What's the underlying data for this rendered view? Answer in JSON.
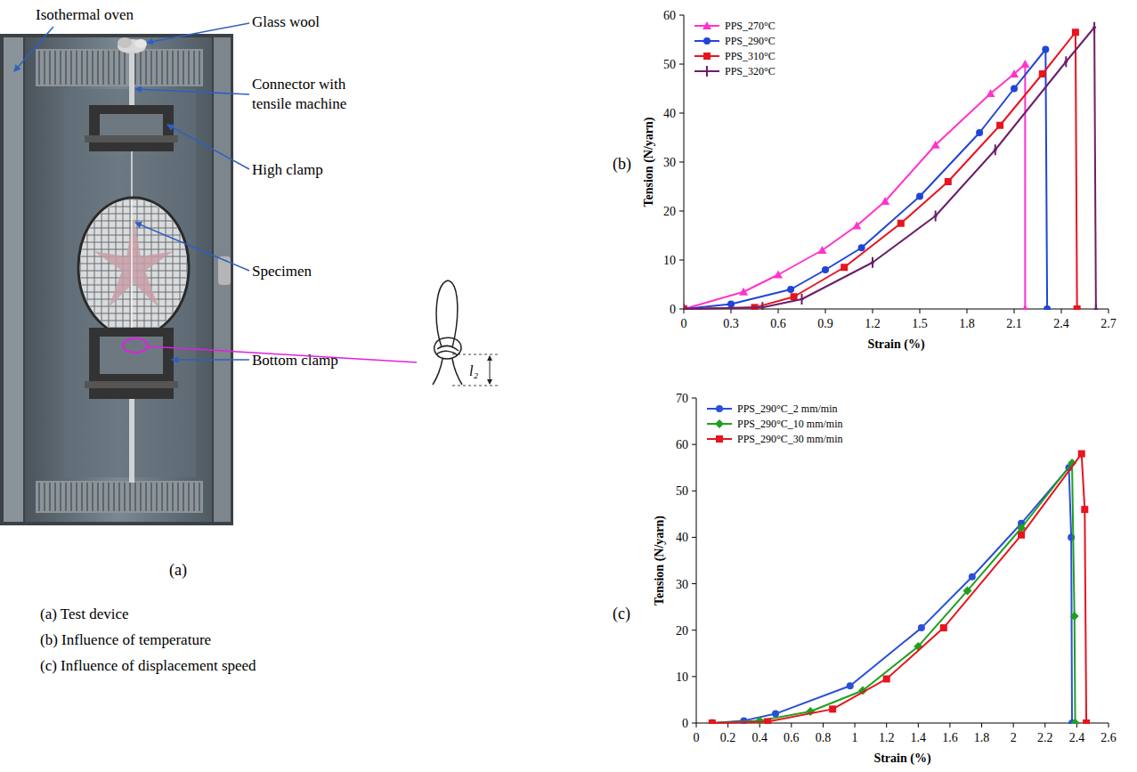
{
  "diagram": {
    "panel": "(a)",
    "labels": [
      "Isothermal oven",
      "Glass wool",
      "Connector with tensile machine",
      "High clamp",
      "Specimen",
      "Bottom clamp"
    ],
    "knot_dimension": "l₂"
  },
  "captions": [
    "(a) Test device",
    "(b) Influence of temperature",
    "(c) Influence of displacement speed"
  ],
  "chart_data": [
    {
      "type": "line",
      "title": "(b)",
      "x_label": "Strain (%)",
      "y_label": "Tension (N/yarn)",
      "xlim": [
        0,
        2.7
      ],
      "xticks": [
        0,
        0.3,
        0.6,
        0.9,
        1.2,
        1.5,
        1.8,
        2.1,
        2.4,
        2.7
      ],
      "ylim": [
        0,
        60
      ],
      "yticks": [
        0,
        10,
        20,
        30,
        40,
        50,
        60
      ],
      "grid": false,
      "legend": "top-left",
      "series": [
        {
          "name": "PPS_270°C",
          "color": "#ff33cc",
          "marker": "triangle",
          "x": [
            0,
            0.38,
            0.6,
            0.88,
            1.1,
            1.28,
            1.6,
            1.95,
            2.1,
            2.17,
            2.17
          ],
          "values": [
            0,
            3.5,
            7,
            12,
            17,
            22,
            33.5,
            44,
            48,
            50,
            0
          ]
        },
        {
          "name": "PPS_290°C",
          "color": "#1f45d8",
          "marker": "circle",
          "x": [
            0,
            0.3,
            0.68,
            0.9,
            1.13,
            1.5,
            1.88,
            2.1,
            2.3,
            2.31
          ],
          "values": [
            0,
            1,
            4,
            8,
            12.5,
            23,
            36,
            45,
            53,
            0
          ]
        },
        {
          "name": "PPS_310°C",
          "color": "#e8141e",
          "marker": "square",
          "x": [
            0,
            0.45,
            0.7,
            1.02,
            1.38,
            1.68,
            2.01,
            2.28,
            2.49,
            2.5
          ],
          "values": [
            0,
            0.3,
            2.5,
            8.5,
            17.5,
            26,
            37.5,
            48,
            56.5,
            0
          ]
        },
        {
          "name": "PPS_320°C",
          "color": "#6b1f6b",
          "marker": "vline",
          "x": [
            0,
            0.5,
            0.75,
            1.2,
            1.6,
            1.98,
            2.43,
            2.61,
            2.62
          ],
          "values": [
            0,
            0.3,
            2,
            9.5,
            19,
            32.5,
            50.5,
            57.5,
            0
          ]
        }
      ]
    },
    {
      "type": "line",
      "title": "(c)",
      "x_label": "Strain (%)",
      "y_label": "Tension (N/yarn)",
      "xlim": [
        0,
        2.6
      ],
      "xticks": [
        0,
        0.2,
        0.4,
        0.6,
        0.8,
        1,
        1.2,
        1.4,
        1.6,
        1.8,
        2,
        2.2,
        2.4,
        2.6
      ],
      "ylim": [
        0,
        70
      ],
      "yticks": [
        0,
        10,
        20,
        30,
        40,
        50,
        60,
        70
      ],
      "grid": false,
      "legend": "top-left",
      "series": [
        {
          "name": "PPS_290°C_2 mm/min",
          "color": "#2b4fd8",
          "marker": "circle",
          "x": [
            0.1,
            0.3,
            0.5,
            0.97,
            1.42,
            1.74,
            2.05,
            2.35,
            2.365,
            2.37
          ],
          "values": [
            0,
            0.5,
            2,
            8,
            20.5,
            31.5,
            43,
            55,
            40,
            0
          ]
        },
        {
          "name": "PPS_290°C_10 mm/min",
          "color": "#1ea01e",
          "marker": "diamond",
          "x": [
            0.1,
            0.4,
            0.72,
            1.05,
            1.4,
            1.71,
            2.05,
            2.37,
            2.385,
            2.39
          ],
          "values": [
            0,
            0.5,
            2.5,
            7,
            16.5,
            28.5,
            42,
            56,
            23,
            0
          ]
        },
        {
          "name": "PPS_290°C_30 mm/min",
          "color": "#e8141e",
          "marker": "square",
          "x": [
            0.1,
            0.45,
            0.86,
            1.2,
            1.56,
            2.05,
            2.43,
            2.45,
            2.46
          ],
          "values": [
            0,
            0.3,
            3,
            9.5,
            20.5,
            40.5,
            58,
            46,
            0
          ]
        }
      ]
    }
  ]
}
